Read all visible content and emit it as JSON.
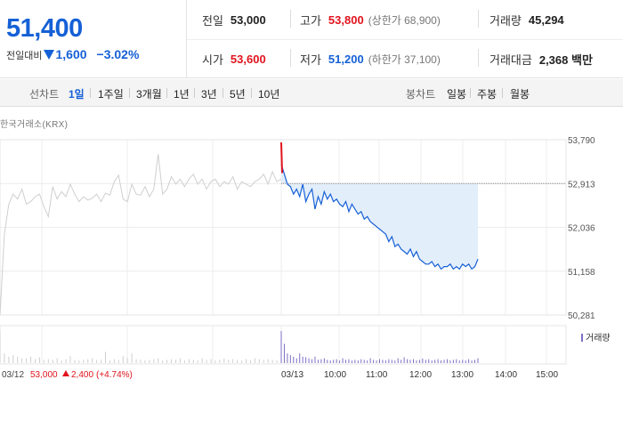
{
  "summary": {
    "price": "51,400",
    "change_label": "전일대비",
    "change_value": "1,600",
    "change_percent": "−3.02%"
  },
  "stats": {
    "prev_close": {
      "label": "전일",
      "value": "53,000"
    },
    "high": {
      "label": "고가",
      "value": "53,800",
      "sub": "(상한가 68,900)"
    },
    "volume": {
      "label": "거래량",
      "value": "45,294"
    },
    "open": {
      "label": "시가",
      "value": "53,600"
    },
    "low": {
      "label": "저가",
      "value": "51,200",
      "sub": "(하한가 37,100)"
    },
    "trade_value": {
      "label": "거래대금",
      "value": "2,368 백만"
    }
  },
  "tabs": {
    "line_label": "선차트",
    "line": [
      "1일",
      "1주일",
      "3개월",
      "1년",
      "3년",
      "5년",
      "10년"
    ],
    "candle_label": "봉차트",
    "candle": [
      "일봉",
      "주봉",
      "월봉"
    ]
  },
  "source": "한국거래소(KRX)",
  "colors": {
    "up": "#e0141e",
    "down": "#1560d6",
    "prev_day_line": "#cfcfcf",
    "fill": "#e3eefb"
  },
  "chart_data": {
    "type": "line",
    "y_ticks": [
      "53,790",
      "52,913",
      "52,036",
      "51,158",
      "50,281"
    ],
    "ylim": [
      50281,
      53790
    ],
    "x_ticks": [
      "03/12",
      "03/13",
      "10:00",
      "11:00",
      "12:00",
      "13:00",
      "14:00",
      "15:00"
    ],
    "reference_value": 52913,
    "prev_day_footer": {
      "date": "03/12",
      "close": "53,000",
      "change": "2,400",
      "change_pct": "(+4.74%)"
    },
    "volume_legend": "거래량",
    "series": [
      {
        "day": "03/12",
        "values": [
          50281,
          51900,
          52500,
          52700,
          52600,
          52800,
          52500,
          52550,
          52650,
          52700,
          52450,
          52250,
          52850,
          52600,
          52750,
          52650,
          52900,
          52700,
          52550,
          52650,
          52580,
          52620,
          52700,
          52550,
          52720,
          52680,
          52950,
          53080,
          52600,
          52550,
          52900,
          52700,
          52680,
          52850,
          52650,
          52800,
          53500,
          52700,
          52800,
          53050,
          52900,
          53000,
          52850,
          53000,
          53100,
          52900,
          53000,
          52800,
          52950,
          53000,
          52850,
          52950,
          52900,
          53050,
          52800,
          52950,
          52900,
          52850,
          52950,
          53000,
          53100,
          52900,
          53150,
          52950,
          53000
        ]
      },
      {
        "day": "03/13",
        "values": [
          53300,
          53100,
          52900,
          52850,
          52700,
          52800,
          52650,
          52900,
          52550,
          52700,
          52800,
          52400,
          52650,
          52500,
          52750,
          52600,
          52700,
          52550,
          52600,
          52500,
          52450,
          52550,
          52350,
          52500,
          52400,
          52300,
          52350,
          52200,
          52250,
          52150,
          52100,
          52050,
          52000,
          51950,
          51900,
          51750,
          51850,
          51650,
          51700,
          51600,
          51550,
          51500,
          51600,
          51450,
          51550,
          51400,
          51350,
          51300,
          51300,
          51350,
          51250,
          51300,
          51200,
          51250,
          51250,
          51300,
          51200,
          51250,
          51200,
          51300,
          51250,
          51300,
          51200,
          51250,
          51400
        ]
      }
    ],
    "volume": {
      "prev_day": [
        100,
        30,
        20,
        25,
        20,
        15,
        15,
        20,
        12,
        18,
        10,
        12,
        10,
        15,
        8,
        12,
        22,
        10,
        8,
        10,
        12,
        15,
        10,
        10,
        35,
        8,
        12,
        10,
        22,
        15,
        30,
        12,
        10,
        8,
        10,
        12,
        15,
        8,
        10,
        12,
        10,
        15,
        8,
        12,
        10,
        8,
        15,
        10,
        12,
        8,
        10,
        14,
        10,
        12,
        10,
        8,
        12,
        10,
        15,
        12,
        10,
        12,
        10,
        8,
        30
      ],
      "today": [
        100,
        60,
        30,
        25,
        20,
        15,
        30,
        20,
        18,
        15,
        12,
        20,
        10,
        12,
        15,
        10,
        8,
        10,
        12,
        8,
        15,
        10,
        12,
        8,
        10,
        8,
        12,
        10,
        8,
        15,
        10,
        8,
        12,
        10,
        8,
        12,
        10,
        8,
        15,
        10,
        18,
        12,
        10,
        12,
        8,
        10,
        14,
        10,
        12,
        8,
        10,
        12,
        8,
        10,
        12,
        8,
        10,
        12,
        8,
        10,
        8,
        12,
        8,
        10,
        15
      ]
    }
  }
}
